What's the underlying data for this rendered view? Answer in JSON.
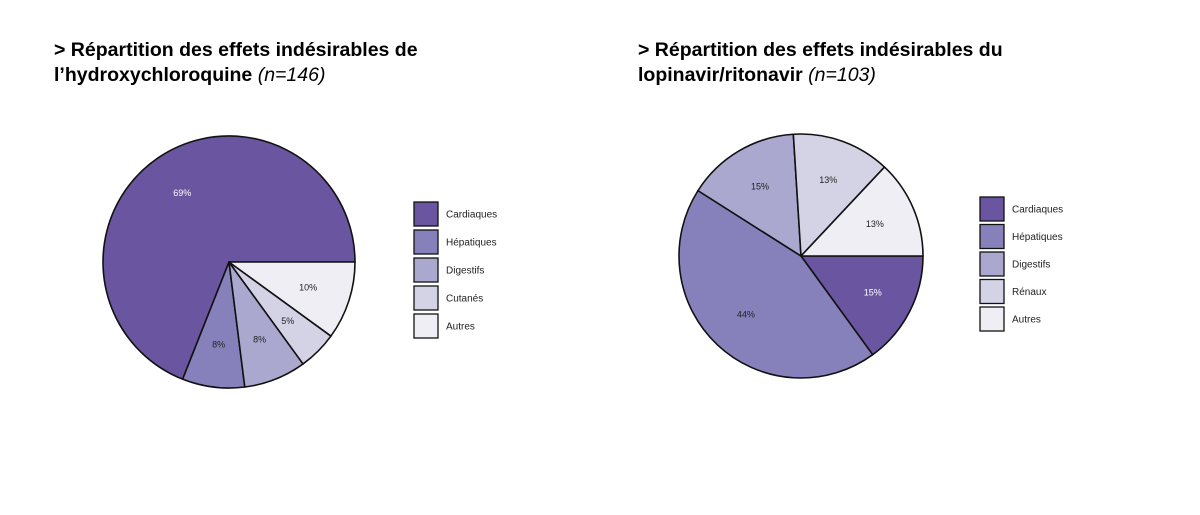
{
  "chart_data": [
    {
      "type": "pie",
      "title": "> Répartition des effets indésirables de",
      "title_line2": "l’hydroxychloroquine",
      "title_n": "(n=146)",
      "categories": [
        "Cardiaques",
        "Hépatiques",
        "Digestifs",
        "Cutanés",
        "Autres"
      ],
      "values": [
        69,
        8,
        8,
        5,
        10
      ],
      "labels": [
        "69%",
        "8%",
        "8%",
        "5%",
        "10%"
      ],
      "colors": [
        "#6a55a0",
        "#8681bb",
        "#aaa8cf",
        "#d4d3e6",
        "#efeef5"
      ],
      "start_angle_deg": 0,
      "direction": "counterclockwise",
      "legend_position": "right"
    },
    {
      "type": "pie",
      "title": "> Répartition des effets indésirables du",
      "title_line2": "lopinavir/ritonavir",
      "title_n": "(n=103)",
      "categories": [
        "Cardiaques",
        "Hépatiques",
        "Digestifs",
        "Rénaux",
        "Autres"
      ],
      "values": [
        15,
        44,
        15,
        13,
        13
      ],
      "labels": [
        "15%",
        "44%",
        "15%",
        "13%",
        "13%"
      ],
      "colors": [
        "#6a55a0",
        "#8681bb",
        "#aaa8cf",
        "#d4d3e6",
        "#efeef5"
      ],
      "start_angle_deg": 0,
      "direction": "clockwise",
      "legend_position": "right"
    }
  ]
}
